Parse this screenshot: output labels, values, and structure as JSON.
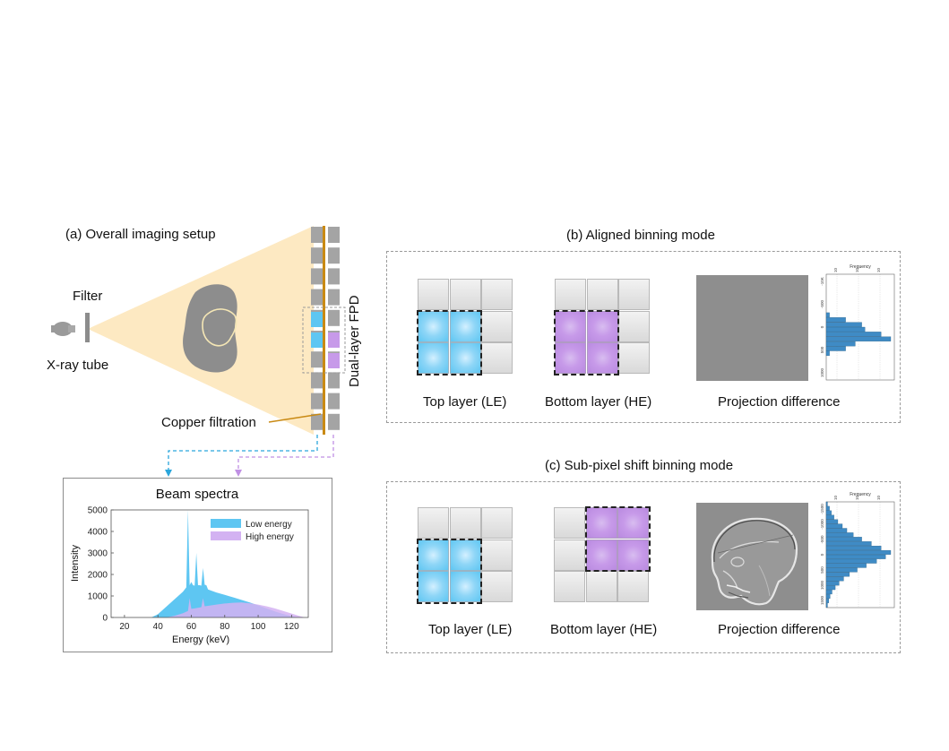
{
  "panel_a": {
    "title": "(a) Overall imaging setup",
    "filter_label": "Filter",
    "tube_label": "X-ray tube",
    "copper_label": "Copper filtration",
    "fpd_label": "Dual-layer FPD"
  },
  "spectra": {
    "title": "Beam spectra",
    "chart_data": {
      "type": "area",
      "title": "Beam spectra",
      "xlabel": "Energy (keV)",
      "ylabel": "Intensity",
      "xlim": [
        12,
        130
      ],
      "ylim": [
        0,
        5000
      ],
      "x_ticks": [
        "20",
        "40",
        "60",
        "80",
        "100",
        "120"
      ],
      "y_ticks": [
        "0",
        "1000",
        "2000",
        "3000",
        "4000",
        "5000"
      ],
      "legend_position": "top-right",
      "series": [
        {
          "name": "Low energy",
          "color": "#5ec6f2",
          "points": [
            [
              36,
              0
            ],
            [
              40,
              150
            ],
            [
              45,
              500
            ],
            [
              50,
              850
            ],
            [
              55,
              1200
            ],
            [
              57,
              1400
            ],
            [
              58,
              5000
            ],
            [
              59,
              1500
            ],
            [
              60,
              1650
            ],
            [
              61,
              1500
            ],
            [
              62,
              1480
            ],
            [
              63,
              3000
            ],
            [
              64,
              1500
            ],
            [
              65,
              1500
            ],
            [
              66,
              1480
            ],
            [
              67,
              2300
            ],
            [
              68,
              1520
            ],
            [
              69,
              1500
            ],
            [
              70,
              1300
            ],
            [
              75,
              1160
            ],
            [
              80,
              1050
            ],
            [
              85,
              940
            ],
            [
              90,
              820
            ],
            [
              95,
              700
            ],
            [
              100,
              560
            ],
            [
              105,
              420
            ],
            [
              110,
              280
            ],
            [
              115,
              160
            ],
            [
              120,
              60
            ],
            [
              124,
              0
            ]
          ]
        },
        {
          "name": "High energy",
          "color": "#d3b2f2",
          "points": [
            [
              45,
              0
            ],
            [
              50,
              80
            ],
            [
              55,
              200
            ],
            [
              58,
              300
            ],
            [
              59,
              900
            ],
            [
              60,
              400
            ],
            [
              62,
              420
            ],
            [
              66,
              480
            ],
            [
              67,
              900
            ],
            [
              68,
              520
            ],
            [
              70,
              540
            ],
            [
              75,
              600
            ],
            [
              80,
              650
            ],
            [
              85,
              680
            ],
            [
              90,
              700
            ],
            [
              95,
              660
            ],
            [
              100,
              600
            ],
            [
              105,
              520
            ],
            [
              110,
              420
            ],
            [
              115,
              300
            ],
            [
              120,
              180
            ],
            [
              125,
              60
            ],
            [
              128,
              0
            ]
          ]
        }
      ]
    }
  },
  "panel_b": {
    "title": "(b) Aligned binning mode",
    "top_label": "Top layer (LE)",
    "bottom_label": "Bottom layer (HE)",
    "proj_label": "Projection difference",
    "hist_title": "Frequency",
    "hist_y_ticks": [
      "-10K",
      "-500",
      "0",
      "500",
      "1000"
    ],
    "hist_x_ticks": [
      "10",
      "10",
      "10"
    ],
    "hist_bins": [
      0,
      0,
      0,
      0,
      0,
      0,
      0,
      0,
      0.05,
      0.3,
      0.55,
      0.6,
      0.85,
      1.0,
      0.45,
      0.3,
      0.05,
      0,
      0,
      0,
      0,
      0
    ]
  },
  "panel_c": {
    "title": "(c) Sub-pixel shift binning mode",
    "top_label": "Top layer (LE)",
    "bottom_label": "Bottom layer (HE)",
    "proj_label": "Projection difference",
    "hist_title": "Frequency",
    "hist_y_ticks": [
      "-1500",
      "-1000",
      "-500",
      "0",
      "500",
      "1000",
      "1500"
    ],
    "hist_x_ticks": [
      "10",
      "10",
      "10"
    ],
    "hist_bins": [
      0.02,
      0.05,
      0.08,
      0.12,
      0.18,
      0.25,
      0.32,
      0.42,
      0.55,
      0.7,
      0.85,
      1.0,
      0.92,
      0.78,
      0.62,
      0.48,
      0.36,
      0.27,
      0.2,
      0.14,
      0.09,
      0.06,
      0.04,
      0.02
    ]
  }
}
